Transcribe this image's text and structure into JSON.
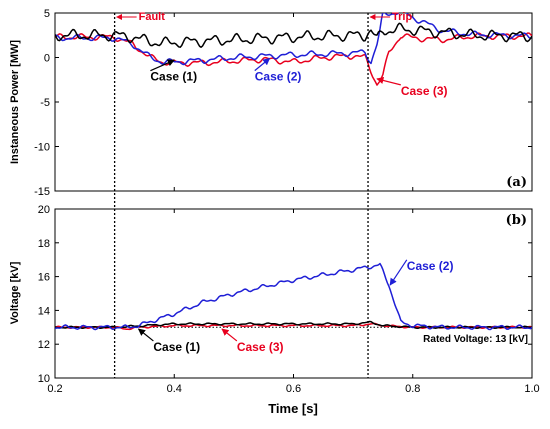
{
  "chart_data": [
    {
      "type": "line",
      "panel_label": "(a)",
      "ylabel": "Instaneous Power [MW]",
      "xlim": [
        0.2,
        1.0
      ],
      "ylim": [
        -15,
        5
      ],
      "yticks": [
        -15,
        -10,
        -5,
        0,
        5
      ],
      "grid": false,
      "colors": {
        "Case (1)": "#000000",
        "Case (2)": "#1f1fd6",
        "Case (3)": "#e8001e"
      },
      "series": [
        {
          "name": "Case (1)",
          "color": "#000000",
          "x": [
            0.2,
            0.3,
            0.33,
            0.36,
            0.38,
            0.4,
            0.5,
            0.6,
            0.7,
            0.72,
            0.73,
            0.74,
            0.75,
            0.78,
            0.85,
            0.9,
            1.0
          ],
          "y": [
            2.5,
            2.5,
            2.3,
            1.8,
            1.6,
            1.7,
            2.0,
            2.3,
            2.5,
            2.5,
            3.0,
            2.0,
            3.0,
            3.2,
            2.8,
            2.5,
            2.4
          ]
        },
        {
          "name": "Case (2)",
          "color": "#1f1fd6",
          "x": [
            0.2,
            0.3,
            0.33,
            0.36,
            0.38,
            0.4,
            0.45,
            0.5,
            0.6,
            0.7,
            0.72,
            0.73,
            0.74,
            0.745,
            0.75,
            0.78,
            0.8,
            0.85,
            0.9,
            1.0
          ],
          "y": [
            2.2,
            2.2,
            1.5,
            0.0,
            -0.5,
            -0.5,
            -0.3,
            0.0,
            0.3,
            0.5,
            0.6,
            -0.5,
            1.5,
            3.0,
            4.8,
            5.2,
            4.5,
            3.0,
            2.6,
            2.4
          ]
        },
        {
          "name": "Case (3)",
          "color": "#e8001e",
          "x": [
            0.2,
            0.3,
            0.33,
            0.36,
            0.38,
            0.4,
            0.45,
            0.5,
            0.55,
            0.6,
            0.65,
            0.7,
            0.72,
            0.73,
            0.74,
            0.75,
            0.76,
            0.78,
            0.8,
            0.85,
            0.9,
            1.0
          ],
          "y": [
            2.3,
            2.3,
            1.5,
            0.0,
            -0.5,
            -0.6,
            -0.6,
            -0.4,
            -0.2,
            -0.5,
            0.0,
            0.2,
            0.0,
            -1.5,
            -3.0,
            -2.0,
            0.5,
            2.5,
            2.2,
            2.0,
            2.4,
            2.4
          ]
        }
      ]
    },
    {
      "type": "line",
      "panel_label": "(b)",
      "xlabel": "Time [s]",
      "ylabel": "Voltage [kV]",
      "xlim": [
        0.2,
        1.0
      ],
      "ylim": [
        10,
        20
      ],
      "xticks": [
        0.2,
        0.4,
        0.6,
        0.8,
        1.0
      ],
      "xticklabels": [
        "0.2",
        "0.4",
        "0.6",
        "0.8",
        "1.0"
      ],
      "yticks": [
        10,
        12,
        14,
        16,
        18,
        20
      ],
      "grid": false,
      "reference_line": {
        "label": "Rated Voltage: 13 [kV]",
        "value": 13
      },
      "series": [
        {
          "name": "Case (1)",
          "color": "#000000",
          "x": [
            0.2,
            0.3,
            0.35,
            0.4,
            0.5,
            0.6,
            0.7,
            0.73,
            0.75,
            0.8,
            0.9,
            1.0
          ],
          "y": [
            13.0,
            13.0,
            13.1,
            13.2,
            13.2,
            13.2,
            13.2,
            13.3,
            13.1,
            13.0,
            13.0,
            13.0
          ]
        },
        {
          "name": "Case (2)",
          "color": "#1f1fd6",
          "x": [
            0.2,
            0.3,
            0.32,
            0.34,
            0.4,
            0.45,
            0.5,
            0.55,
            0.6,
            0.65,
            0.7,
            0.73,
            0.745,
            0.76,
            0.78,
            0.8,
            0.85,
            0.9,
            1.0
          ],
          "y": [
            13.0,
            13.0,
            13.0,
            13.1,
            13.8,
            14.5,
            15.0,
            15.4,
            15.8,
            16.1,
            16.4,
            16.6,
            16.7,
            15.5,
            13.3,
            13.1,
            13.0,
            13.0,
            13.0
          ]
        },
        {
          "name": "Case (3)",
          "color": "#e8001e",
          "x": [
            0.2,
            0.3,
            0.32,
            0.34,
            0.4,
            0.5,
            0.6,
            0.7,
            0.73,
            0.75,
            0.8,
            0.9,
            1.0
          ],
          "y": [
            13.0,
            13.0,
            12.9,
            13.0,
            13.1,
            13.1,
            13.1,
            13.1,
            13.2,
            13.1,
            13.0,
            13.0,
            13.0
          ]
        }
      ]
    }
  ],
  "events": [
    {
      "label": "Fault",
      "time": 0.3
    },
    {
      "label": "Trip",
      "time": 0.725
    }
  ],
  "annotations_a": [
    {
      "text": "Case (1)",
      "color": "#000000",
      "x": 0.36,
      "y": -2.6,
      "arrow_x": 0.4,
      "arrow_y": -0.3
    },
    {
      "text": "Case (2)",
      "color": "#1f1fd6",
      "x": 0.535,
      "y": -2.6,
      "arrow_x": 0.56,
      "arrow_y": -0.1
    },
    {
      "text": "Case (3)",
      "color": "#e8001e",
      "x": 0.78,
      "y": -4.2,
      "arrow_x": 0.74,
      "arrow_y": -2.4
    }
  ],
  "annotations_b": [
    {
      "text": "Case (1)",
      "color": "#000000",
      "x": 0.365,
      "y": 11.6,
      "arrow_x": 0.34,
      "arrow_y": 12.9
    },
    {
      "text": "Case (3)",
      "color": "#e8001e",
      "x": 0.505,
      "y": 11.6,
      "arrow_x": 0.48,
      "arrow_y": 12.9
    },
    {
      "text": "Case (2)",
      "color": "#1f1fd6",
      "x": 0.79,
      "y": 16.4,
      "arrow_x": 0.762,
      "arrow_y": 15.5
    }
  ]
}
